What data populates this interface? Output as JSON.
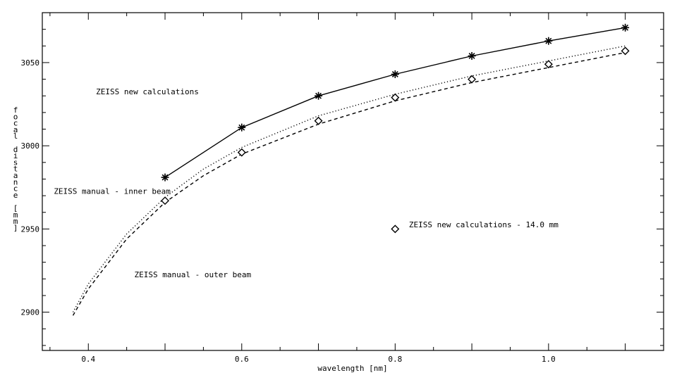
{
  "chart_data": {
    "type": "line",
    "xlabel": "wavelength [nm]",
    "ylabel": "focal distance [mm]",
    "xlim": [
      0.34,
      1.15
    ],
    "ylim": [
      2877,
      3080
    ],
    "x_ticks": [
      0.4,
      0.6,
      0.8,
      1.0
    ],
    "x_tick_labels": [
      "0.4",
      "0.6",
      "0.8",
      "1.0"
    ],
    "y_ticks": [
      2900,
      2950,
      3000,
      3050
    ],
    "y_tick_labels": [
      "2900",
      "2950",
      "3000",
      "3050"
    ],
    "grid": false,
    "series": [
      {
        "name": "ZEISS new calculations",
        "style": "solid",
        "marker": "asterisk",
        "x": [
          0.5,
          0.6,
          0.7,
          0.8,
          0.9,
          1.0,
          1.1
        ],
        "y": [
          2981,
          3011,
          3030,
          3043,
          3054,
          3063,
          3071
        ]
      },
      {
        "name": "ZEISS new calculations - 14.0 mm",
        "style": "none",
        "marker": "diamond",
        "x": [
          0.5,
          0.6,
          0.7,
          0.8,
          0.9,
          1.0,
          1.1
        ],
        "y": [
          2967,
          2996,
          3015,
          3029,
          3040,
          3049,
          3057
        ]
      },
      {
        "name": "ZEISS manual - inner beam",
        "style": "dotted",
        "marker": "none",
        "x": [
          0.38,
          0.4,
          0.45,
          0.5,
          0.55,
          0.6,
          0.7,
          0.8,
          0.9,
          1.0,
          1.1
        ],
        "y": [
          2900,
          2917,
          2947,
          2969,
          2986,
          2999,
          3018,
          3031,
          3042,
          3051,
          3060
        ]
      },
      {
        "name": "ZEISS manual - outer beam",
        "style": "dashed",
        "marker": "none",
        "x": [
          0.38,
          0.4,
          0.45,
          0.5,
          0.55,
          0.6,
          0.7,
          0.8,
          0.9,
          1.0,
          1.1
        ],
        "y": [
          2898,
          2914,
          2944,
          2966,
          2982,
          2995,
          3013,
          3027,
          3038,
          3047,
          3056
        ]
      }
    ],
    "annotations": [
      {
        "text": "ZEISS new calculations",
        "x": 0.41,
        "y": 3031
      },
      {
        "text": "ZEISS manual - inner beam",
        "x": 0.355,
        "y": 2971
      },
      {
        "text": "ZEISS manual - outer beam",
        "x": 0.46,
        "y": 2921
      },
      {
        "text": "ZEISS new calculations - 14.0 mm",
        "x": 0.818,
        "y": 2951
      }
    ],
    "legend_marker": {
      "marker": "diamond",
      "x": 0.8,
      "y": 2950
    }
  }
}
